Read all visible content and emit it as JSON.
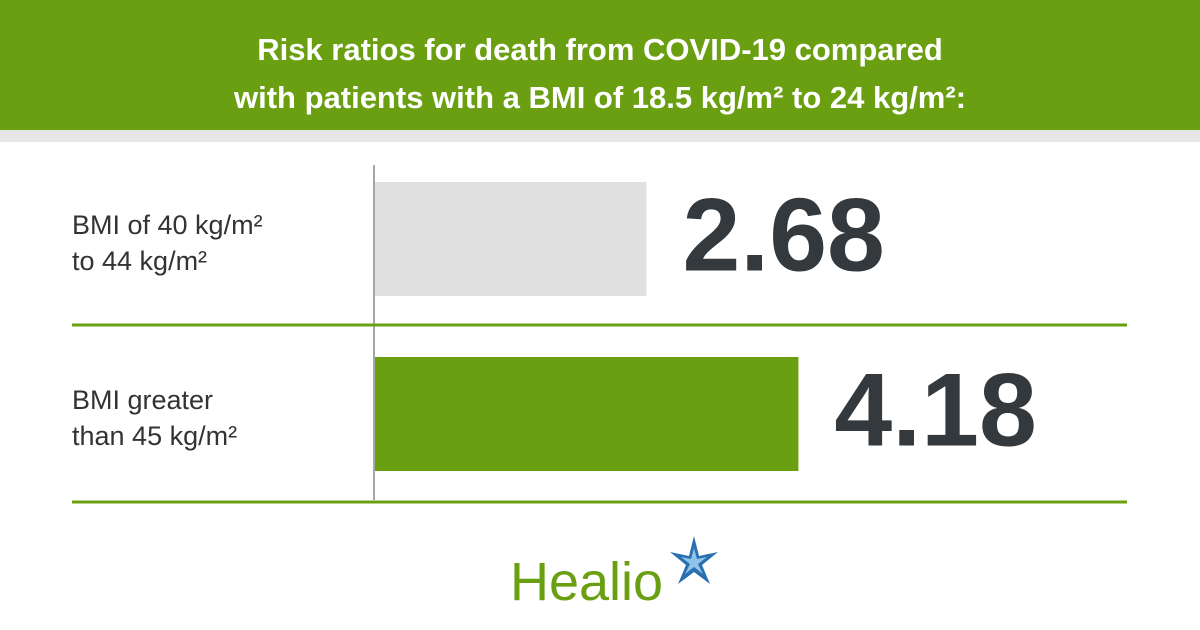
{
  "chart_data": {
    "type": "bar",
    "title": [
      "Risk ratios for death from COVID-19 compared",
      "with patients with a BMI of 18.5 kg/m² to 24 kg/m²:"
    ],
    "categories": [
      [
        "BMI of 40 kg/m²",
        "to 44 kg/m²"
      ],
      [
        "BMI greater",
        "than 45 kg/m²"
      ]
    ],
    "values": [
      2.68,
      4.18
    ],
    "colors": [
      "#e0e0e0",
      "#6a9f12"
    ]
  },
  "brand": "Healio"
}
